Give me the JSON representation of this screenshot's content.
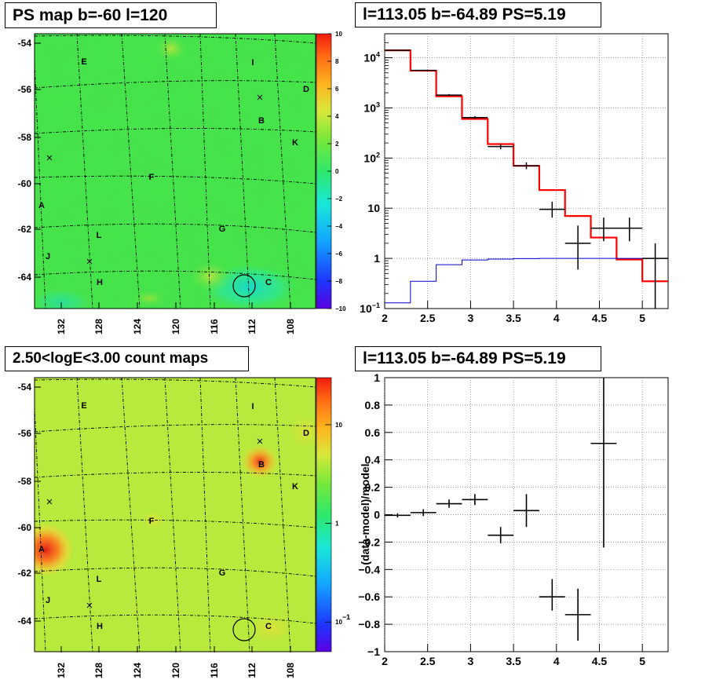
{
  "titles": {
    "top_left": "PS map b=-60 l=120",
    "top_right": "l=113.05 b=-64.89 PS=5.19",
    "bottom_left": "2.50<logE<3.00 count maps",
    "bottom_right": "l=113.05 b=-64.89 PS=5.19"
  },
  "maps": {
    "lat_ticks": [
      "-54",
      "-56",
      "-58",
      "-60",
      "-62",
      "-64"
    ],
    "lon_ticks": [
      "132",
      "128",
      "124",
      "120",
      "116",
      "112",
      "108"
    ],
    "sources": [
      "E",
      "I",
      "D",
      "B",
      "K",
      "F",
      "A",
      "G",
      "L",
      "J",
      "H",
      "C"
    ],
    "ps_colorbar_labels": [
      "10",
      "8",
      "6",
      "4",
      "2",
      "0",
      "−2",
      "−4",
      "−6",
      "−8",
      "−10"
    ],
    "count_colorbar_labels": [
      {
        "label": "10",
        "value": 10
      },
      {
        "label": "1",
        "value": 1
      },
      {
        "label": "10",
        "sup": "−1",
        "value": 0.1
      }
    ],
    "colors": {
      "ps_background": "#44e64a",
      "count_background": "#b7ea3c",
      "hotspot": "#e8231c"
    }
  },
  "chart_data": [
    {
      "type": "line",
      "title": "l=113.05 b=-64.89 PS=5.19",
      "scale_y": "log",
      "xlim": [
        2,
        5.3
      ],
      "ylim": [
        0.1,
        30000
      ],
      "grid": true,
      "x_ticks": [
        "2",
        "2.5",
        "3",
        "3.5",
        "4",
        "4.5",
        "5"
      ],
      "y_ticks": [
        {
          "label": "10",
          "sup": "−1",
          "value": 0.1
        },
        {
          "label": "1",
          "value": 1
        },
        {
          "label": "10",
          "value": 10
        },
        {
          "label": "10",
          "sup": "2",
          "value": 100
        },
        {
          "label": "10",
          "sup": "3",
          "value": 1000
        },
        {
          "label": "10",
          "sup": "4",
          "value": 10000
        }
      ],
      "bin_edges": [
        2.0,
        2.3,
        2.6,
        2.9,
        3.2,
        3.5,
        3.8,
        4.1,
        4.4,
        4.7,
        5.0,
        5.3
      ],
      "series": [
        {
          "color": "#ff0000",
          "values": [
            14000,
            5500,
            1700,
            600,
            190,
            70,
            23,
            7,
            2.6,
            0.95,
            0.35
          ]
        },
        {
          "color": "#0000cc",
          "values": [
            0.13,
            0.35,
            0.75,
            0.93,
            0.97,
            0.99,
            1,
            1,
            1,
            1,
            1
          ]
        },
        {
          "color": "#000000",
          "points": [
            {
              "x": 2.15,
              "y": 14000,
              "xerr": 0.15,
              "ylo": 13800,
              "yhi": 14200
            },
            {
              "x": 2.45,
              "y": 5600,
              "xerr": 0.15,
              "ylo": 5450,
              "yhi": 5750
            },
            {
              "x": 2.75,
              "y": 1800,
              "xerr": 0.15,
              "ylo": 1720,
              "yhi": 1880
            },
            {
              "x": 3.05,
              "y": 640,
              "xerr": 0.15,
              "ylo": 600,
              "yhi": 680
            },
            {
              "x": 3.35,
              "y": 170,
              "xerr": 0.15,
              "ylo": 150,
              "yhi": 190
            },
            {
              "x": 3.65,
              "y": 70,
              "xerr": 0.15,
              "ylo": 60,
              "yhi": 82
            },
            {
              "x": 3.95,
              "y": 9.5,
              "xerr": 0.15,
              "ylo": 6.5,
              "yhi": 13.5
            },
            {
              "x": 4.25,
              "y": 2.0,
              "xerr": 0.15,
              "ylo": 0.6,
              "yhi": 4.5
            },
            {
              "x": 4.55,
              "y": 4.0,
              "xerr": 0.15,
              "ylo": 2.2,
              "yhi": 6.5
            },
            {
              "x": 4.85,
              "y": 4.0,
              "xerr": 0.15,
              "ylo": 2.2,
              "yhi": 6.5
            },
            {
              "x": 5.15,
              "y": 1.0,
              "xerr": 0.15,
              "ylo": 0.1,
              "yhi": 2.0
            }
          ]
        }
      ]
    },
    {
      "type": "scatter",
      "title": "l=113.05 b=-64.89 PS=5.19",
      "ylabel": "(data-model)/model",
      "xlim": [
        2,
        5.3
      ],
      "ylim": [
        -1,
        1
      ],
      "grid": true,
      "x_ticks": [
        "2",
        "2.5",
        "3",
        "3.5",
        "4",
        "4.5",
        "5"
      ],
      "y_ticks": [
        "−1",
        "−0.8",
        "−0.6",
        "−0.4",
        "−0.2",
        "0",
        "0.2",
        "0.4",
        "0.6",
        "0.8",
        "1"
      ],
      "y_tick_values": [
        -1,
        -0.8,
        -0.6,
        -0.4,
        -0.2,
        0,
        0.2,
        0.4,
        0.6,
        0.8,
        1
      ],
      "series": [
        {
          "color": "#000000",
          "points": [
            {
              "x": 2.15,
              "y": -0.005,
              "xerr": 0.15,
              "ylo": -0.02,
              "yhi": 0.01
            },
            {
              "x": 2.45,
              "y": 0.015,
              "xerr": 0.15,
              "ylo": -0.01,
              "yhi": 0.04
            },
            {
              "x": 2.75,
              "y": 0.08,
              "xerr": 0.15,
              "ylo": 0.05,
              "yhi": 0.11
            },
            {
              "x": 3.05,
              "y": 0.11,
              "xerr": 0.15,
              "ylo": 0.07,
              "yhi": 0.15
            },
            {
              "x": 3.35,
              "y": -0.15,
              "xerr": 0.15,
              "ylo": -0.21,
              "yhi": -0.09
            },
            {
              "x": 3.65,
              "y": 0.03,
              "xerr": 0.15,
              "ylo": -0.09,
              "yhi": 0.15
            },
            {
              "x": 3.95,
              "y": -0.6,
              "xerr": 0.15,
              "ylo": -0.7,
              "yhi": -0.47
            },
            {
              "x": 4.25,
              "y": -0.73,
              "xerr": 0.15,
              "ylo": -0.92,
              "yhi": -0.54
            },
            {
              "x": 4.55,
              "y": 0.52,
              "xerr": 0.15,
              "ylo": -0.24,
              "yhi": 1.0
            }
          ]
        }
      ]
    }
  ]
}
